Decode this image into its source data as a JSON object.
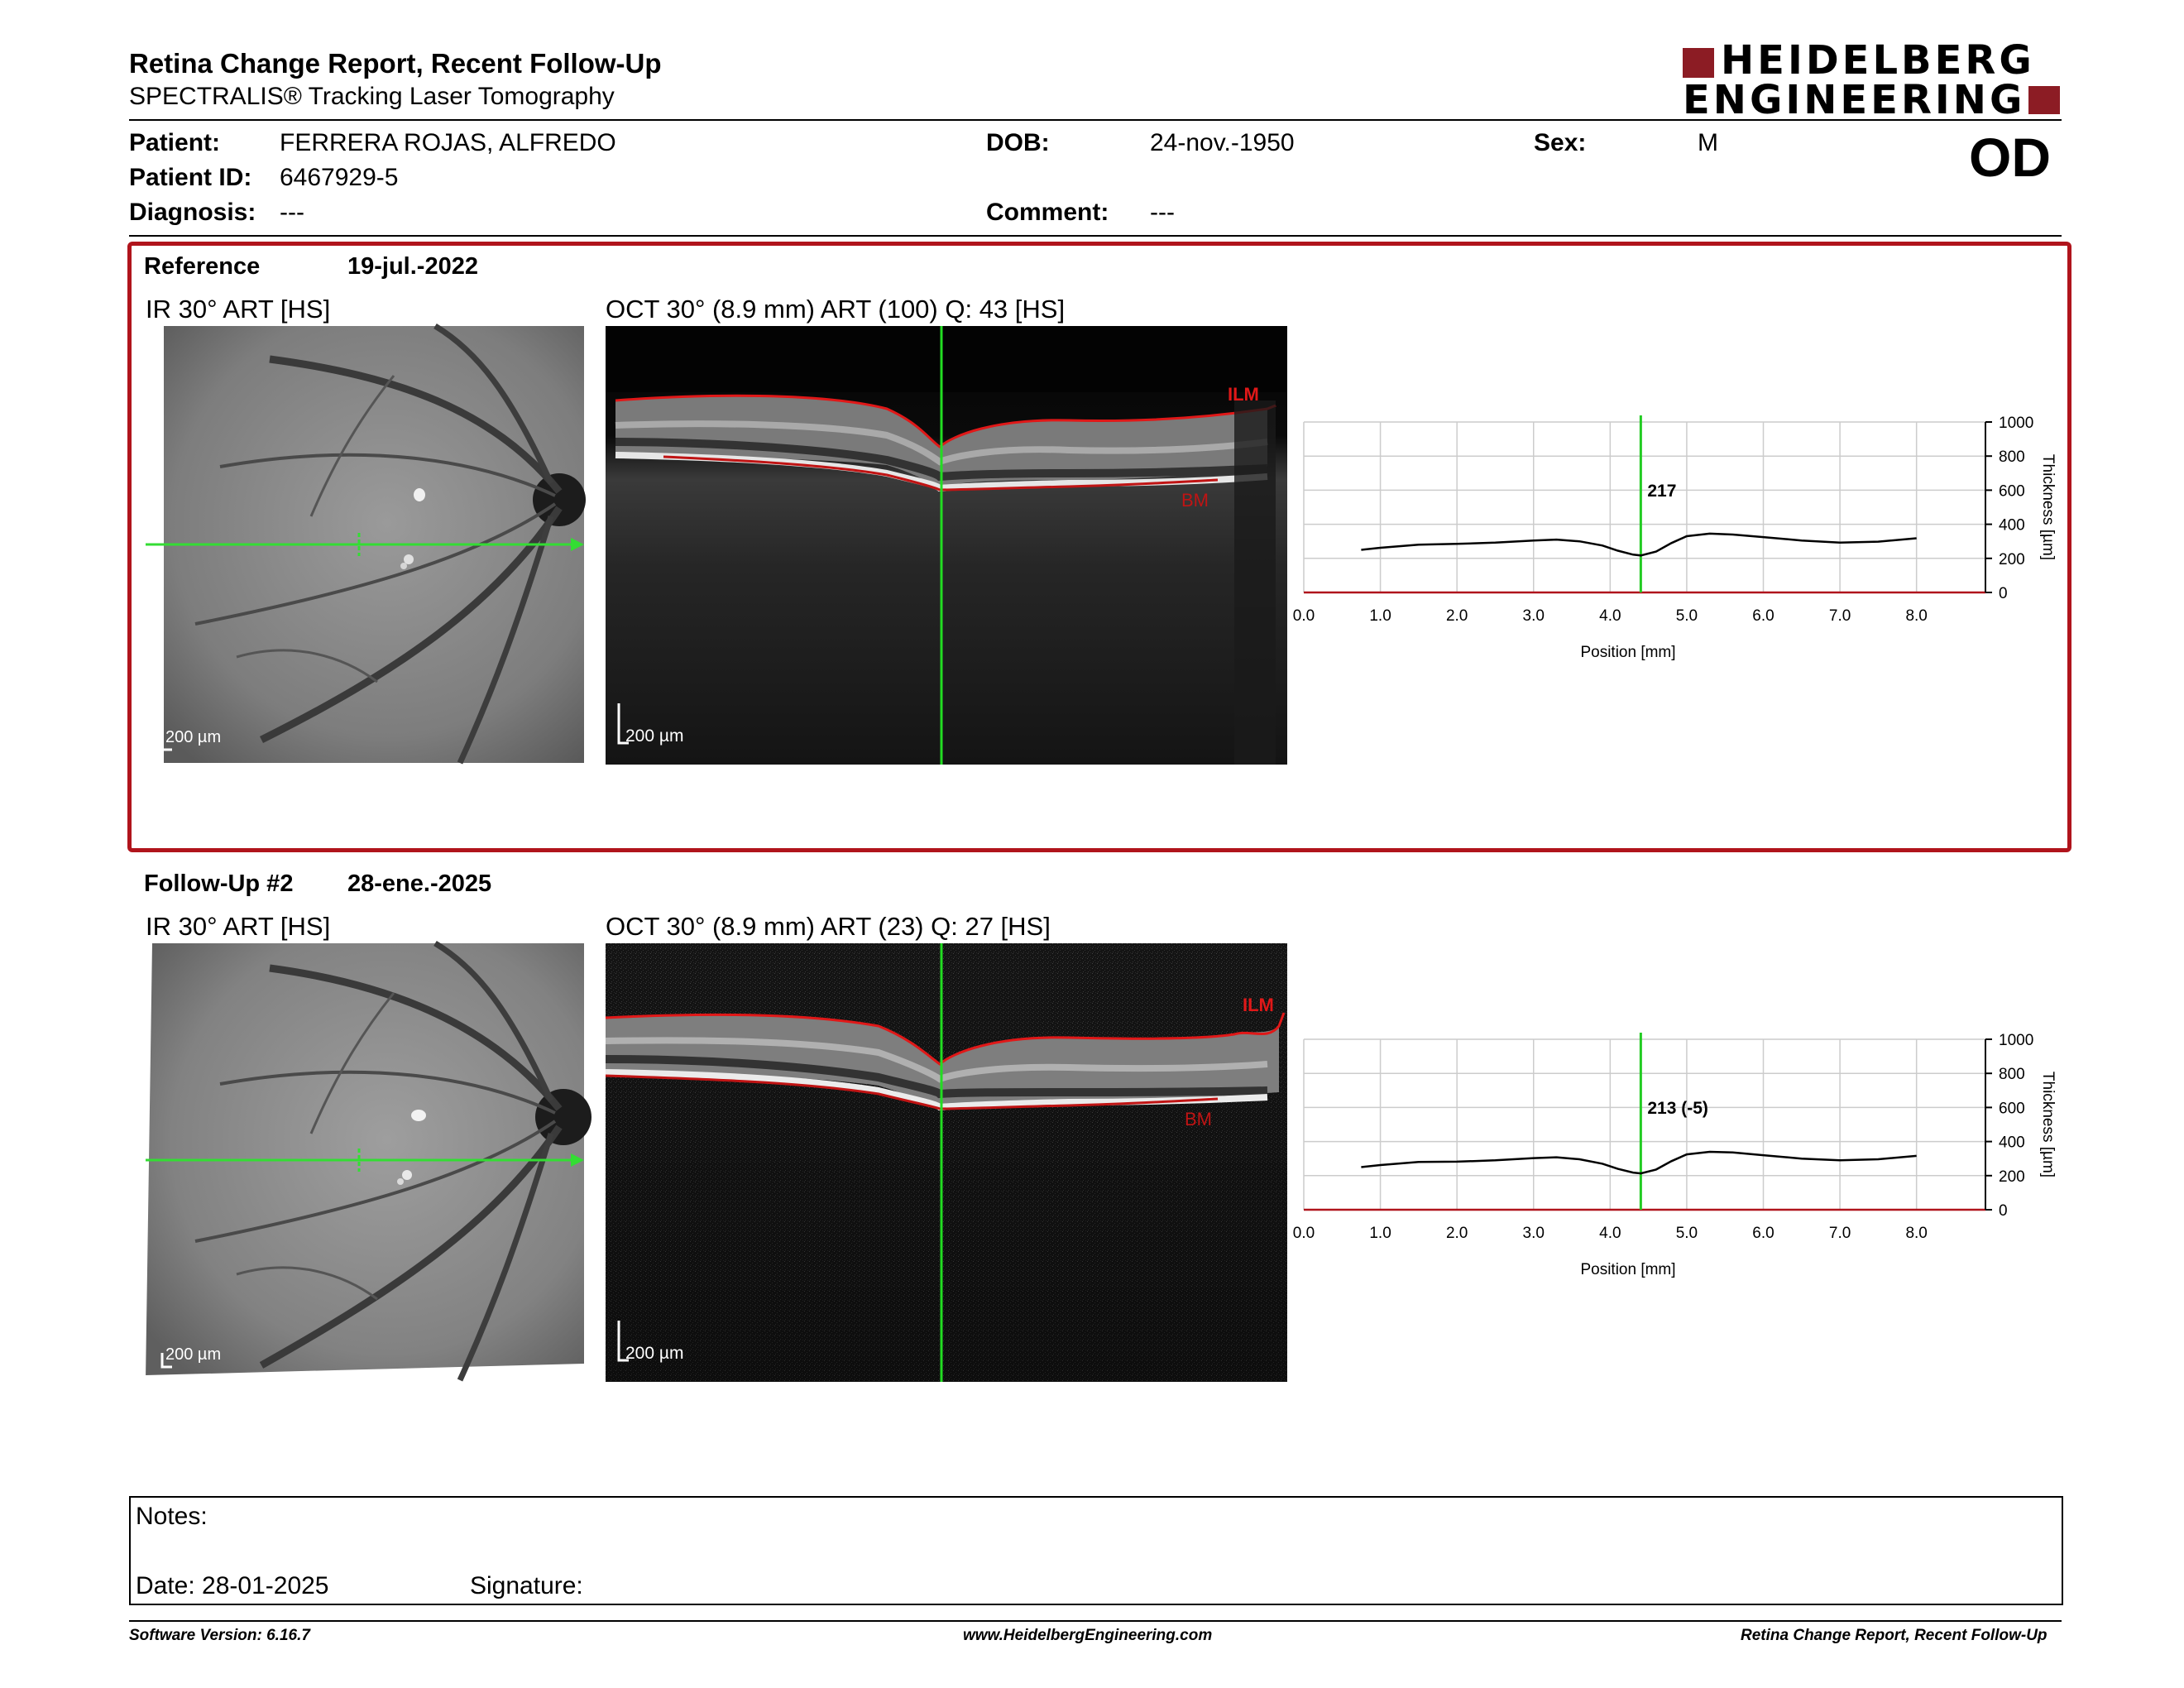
{
  "report": {
    "title": "Retina Change Report, Recent Follow-Up",
    "subtitle": "SPECTRALIS® Tracking Laser Tomography",
    "eye": "OD"
  },
  "logo": {
    "line1": "HEIDELBERG",
    "line2": "ENGINEERING",
    "brand_color": "#8c1c24"
  },
  "patient": {
    "name_label": "Patient:",
    "name": "FERRERA ROJAS, ALFREDO",
    "id_label": "Patient ID:",
    "id": "6467929-5",
    "diagnosis_label": "Diagnosis:",
    "diagnosis": "---",
    "dob_label": "DOB:",
    "dob": "24-nov.-1950",
    "comment_label": "Comment:",
    "comment": "---",
    "sex_label": "Sex:",
    "sex": "M"
  },
  "reference": {
    "heading": "Reference",
    "date": "19-jul.-2022",
    "ir_label": "IR 30° ART [HS]",
    "oct_label": "OCT 30° (8.9 mm) ART (100) Q: 43 [HS]",
    "scale": "200 µm",
    "ilm": "ILM",
    "bm": "BM"
  },
  "followup": {
    "heading": "Follow-Up #2",
    "date": "28-ene.-2025",
    "ir_label": "IR 30° ART [HS]",
    "oct_label": "OCT 30° (8.9 mm) ART (23) Q: 27 [HS]",
    "scale": "200 µm",
    "ilm": "ILM",
    "bm": "BM"
  },
  "chart_data": [
    {
      "type": "line",
      "xlabel": "Position [mm]",
      "ylabel": "Thickness [µm]",
      "xlim": [
        0,
        8.9
      ],
      "ylim": [
        0,
        1000
      ],
      "xticks": [
        "0.0",
        "1.0",
        "2.0",
        "3.0",
        "4.0",
        "5.0",
        "6.0",
        "7.0",
        "8.0"
      ],
      "yticks": [
        "0",
        "200",
        "400",
        "600",
        "800",
        "1000"
      ],
      "cursor_x": 4.4,
      "cursor_label": "217",
      "colors": {
        "cursor": "#22cc22",
        "line": "#000000",
        "baseline": "#b0141c",
        "grid": "#cccccc"
      },
      "x": [
        0.75,
        1.0,
        1.5,
        2.0,
        2.5,
        3.0,
        3.3,
        3.6,
        3.9,
        4.1,
        4.3,
        4.4,
        4.6,
        4.8,
        5.0,
        5.3,
        5.6,
        6.0,
        6.5,
        7.0,
        7.5,
        8.0
      ],
      "y": [
        250,
        262,
        280,
        285,
        292,
        305,
        310,
        300,
        275,
        245,
        222,
        217,
        240,
        290,
        330,
        345,
        340,
        325,
        305,
        292,
        298,
        318
      ]
    },
    {
      "type": "line",
      "xlabel": "Position [mm]",
      "ylabel": "Thickness [µm]",
      "xlim": [
        0,
        8.9
      ],
      "ylim": [
        0,
        1000
      ],
      "xticks": [
        "0.0",
        "1.0",
        "2.0",
        "3.0",
        "4.0",
        "5.0",
        "6.0",
        "7.0",
        "8.0"
      ],
      "yticks": [
        "0",
        "200",
        "400",
        "600",
        "800",
        "1000"
      ],
      "cursor_x": 4.4,
      "cursor_label": "213 (-5)",
      "colors": {
        "cursor": "#22cc22",
        "line": "#000000",
        "baseline": "#b0141c",
        "grid": "#cccccc"
      },
      "x": [
        0.75,
        1.0,
        1.5,
        2.0,
        2.5,
        3.0,
        3.3,
        3.6,
        3.9,
        4.1,
        4.3,
        4.4,
        4.6,
        4.8,
        5.0,
        5.3,
        5.6,
        6.0,
        6.5,
        7.0,
        7.5,
        8.0
      ],
      "y": [
        250,
        262,
        280,
        282,
        290,
        303,
        308,
        296,
        270,
        240,
        218,
        213,
        236,
        285,
        325,
        340,
        336,
        320,
        300,
        290,
        296,
        316
      ]
    }
  ],
  "notes": {
    "label": "Notes:",
    "date_label": "Date: 28-01-2025",
    "signature_label": "Signature:"
  },
  "footer": {
    "left": "Software Version: 6.16.7",
    "center": "www.HeidelbergEngineering.com",
    "right": "Retina Change Report, Recent Follow-Up"
  }
}
